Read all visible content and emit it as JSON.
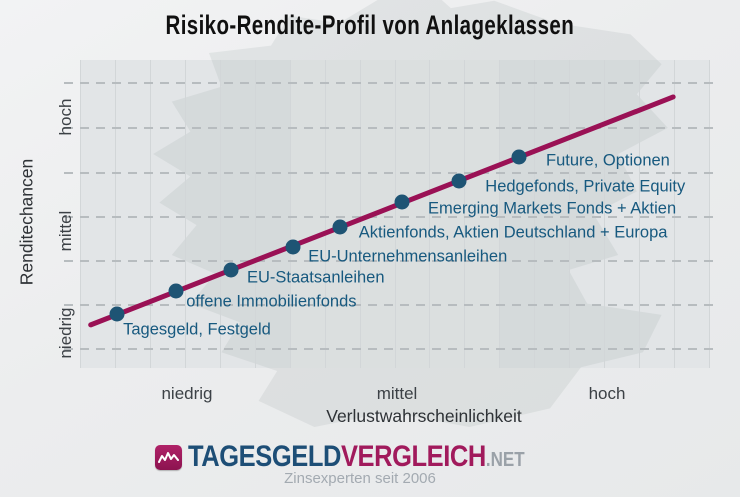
{
  "chart_data": {
    "type": "scatter",
    "title": "Risiko-Rendite-Profil von Anlageklassen",
    "xlabel": "Verlustwahrscheinlichkeit",
    "ylabel": "Renditechancen",
    "x_ticks": [
      "niedrig",
      "mittel",
      "hoch"
    ],
    "y_ticks": [
      "niedrig",
      "mittel",
      "hoch"
    ],
    "x_range": [
      0,
      100
    ],
    "y_range": [
      0,
      100
    ],
    "grid": {
      "vertical_solid_lines": 19,
      "horizontal_dashed_lines": 7,
      "legend": "none"
    },
    "trend_line": {
      "from": {
        "risk": 1.7,
        "rendite": 14.0
      },
      "to": {
        "risk": 94.3,
        "rendite": 88.0
      }
    },
    "points": [
      {
        "label": "Tagesgeld, Festgeld",
        "risk": 5.9,
        "rendite": 17.5
      },
      {
        "label": "offene Immobilienfonds",
        "risk": 15.3,
        "rendite": 25.0
      },
      {
        "label": "EU-Staatsanleihen",
        "risk": 24.0,
        "rendite": 31.8
      },
      {
        "label": "EU-Unternehmensanleihen",
        "risk": 33.9,
        "rendite": 39.3
      },
      {
        "label": "Aktienfonds, Aktien Deutschland + Europa",
        "risk": 41.3,
        "rendite": 45.8
      },
      {
        "label": "Emerging Markets Fonds + Aktien",
        "risk": 51.2,
        "rendite": 53.9
      },
      {
        "label": "Hedgefonds, Private Equity",
        "risk": 60.3,
        "rendite": 60.7
      },
      {
        "label": "Future, Optionen",
        "risk": 69.8,
        "rendite": 68.5
      }
    ]
  },
  "colors": {
    "trend_line": "#9a1155",
    "point": "#1e5474",
    "point_label": "#17597f",
    "logo_blue": "#1d4e76",
    "logo_magenta": "#a11a5c",
    "logo_gray": "#9aa1a8"
  },
  "footer": {
    "logo_icon": "pulse-chart-icon",
    "logo_part1": "TAGESGELD",
    "logo_part2": "VERGLEICH",
    "logo_part3": ".NET",
    "tagline": "Zinsexperten seit 2006"
  }
}
